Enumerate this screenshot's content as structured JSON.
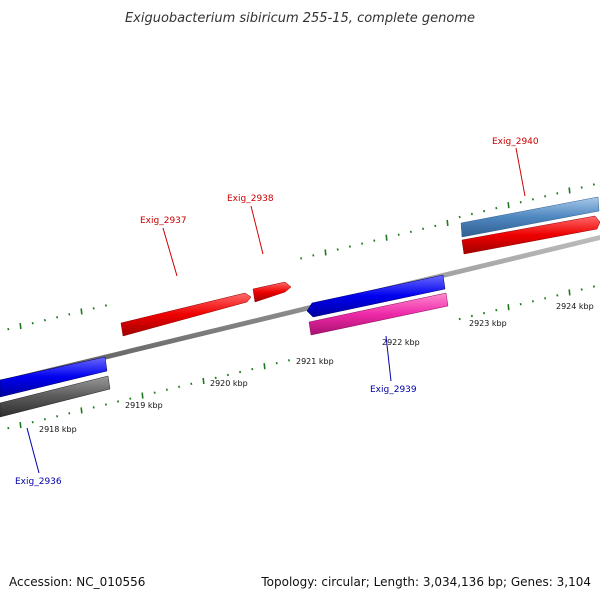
{
  "title": "Exiguobacterium sibiricum 255-15, complete genome",
  "footer": {
    "accession": "Accession: NC_010556",
    "summary": "Topology: circular; Length: 3,034,136 bp; Genes: 3,104"
  },
  "colors": {
    "backbone": "#8c8c8c",
    "tick": "#1f7a1f",
    "forward_gene": "#e00000",
    "forward_label": "#cc0000",
    "reverse_gene": "#0000e0",
    "reverse_label": "#0000aa",
    "pink_gene": "#e61e9b",
    "steel_gene": "#4f87c0",
    "grey_gene": "#5a5a5a"
  },
  "ticks": [
    {
      "label": "2918 kbp"
    },
    {
      "label": "2919 kbp"
    },
    {
      "label": "2920 kbp"
    },
    {
      "label": "2921 kbp"
    },
    {
      "label": "2922 kbp"
    },
    {
      "label": "2923 kbp"
    },
    {
      "label": "2924 kbp"
    }
  ],
  "genes": [
    {
      "name": "Exig_2936",
      "strand": "reverse"
    },
    {
      "name": "Exig_2937",
      "strand": "forward"
    },
    {
      "name": "Exig_2938",
      "strand": "forward"
    },
    {
      "name": "Exig_2939",
      "strand": "reverse"
    },
    {
      "name": "Exig_2940",
      "strand": "forward"
    }
  ]
}
